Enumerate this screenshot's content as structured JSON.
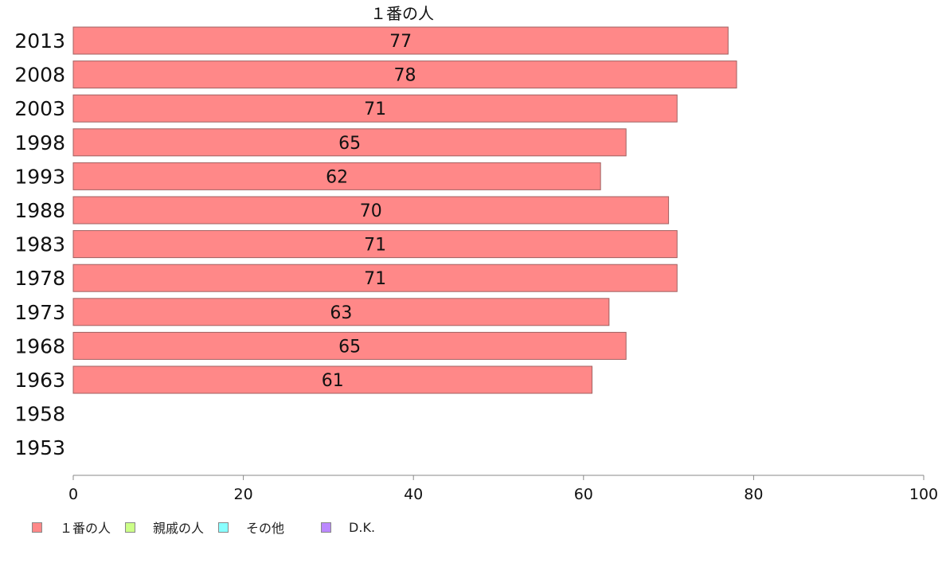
{
  "chart_data": {
    "type": "bar",
    "orientation": "horizontal",
    "title": "１番の人",
    "categories": [
      "2013",
      "2008",
      "2003",
      "1998",
      "1993",
      "1988",
      "1983",
      "1978",
      "1973",
      "1968",
      "1963",
      "1958",
      "1953"
    ],
    "series": [
      {
        "name": "１番の人",
        "color": "#ff8888",
        "values": [
          77,
          78,
          71,
          65,
          62,
          70,
          71,
          71,
          63,
          65,
          61,
          null,
          null
        ],
        "labels": [
          "77",
          "78",
          "71",
          "65",
          "62",
          "70",
          "71",
          "71",
          "63",
          "65",
          "61",
          "",
          ""
        ]
      }
    ],
    "xlim": [
      0,
      100
    ],
    "xticks": [
      "0",
      "20",
      "40",
      "60",
      "80",
      "100"
    ],
    "grid": false,
    "legend_position": "bottom-left"
  },
  "legend": [
    {
      "label": "１番の人",
      "color": "#ff8888"
    },
    {
      "label": "親戚の人",
      "color": "#ccff88"
    },
    {
      "label": "その他",
      "color": "#88ffff"
    },
    {
      "label": "D.K.",
      "color": "#bb88ff"
    }
  ]
}
